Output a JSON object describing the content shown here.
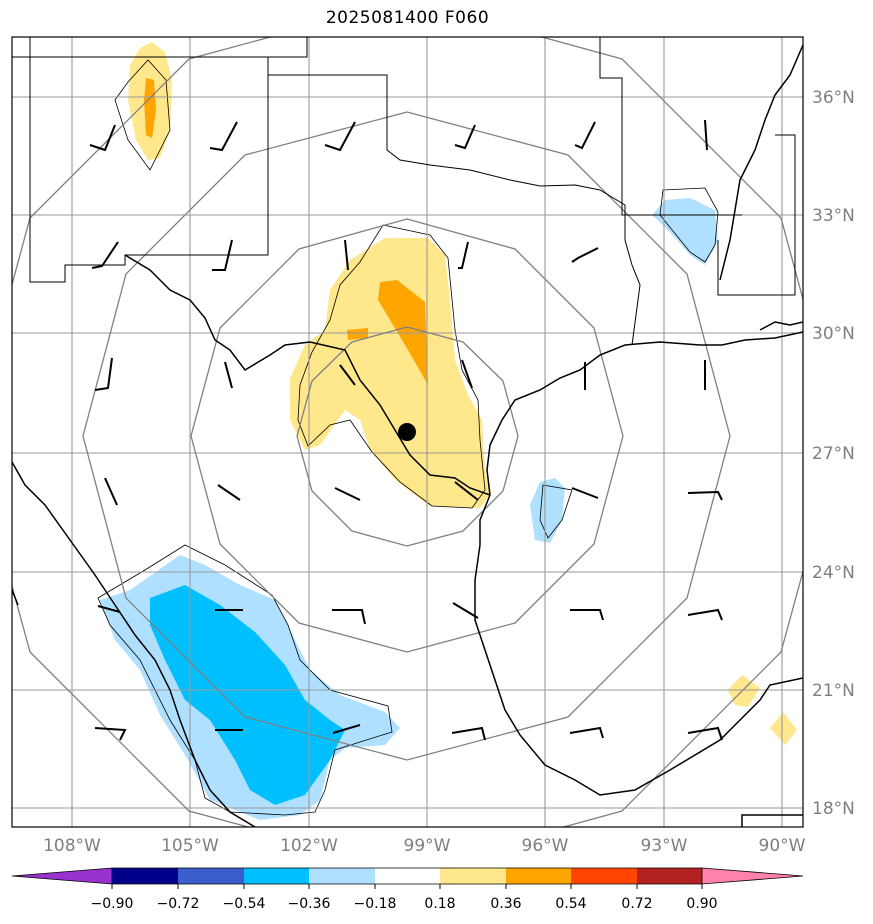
{
  "title": "2025081400 F060",
  "lat_labels": [
    "36°N",
    "33°N",
    "30°N",
    "27°N",
    "24°N",
    "21°N",
    "18°N"
  ],
  "lon_labels": [
    "108°W",
    "105°W",
    "102°W",
    "99°W",
    "96°W",
    "93°W",
    "90°W"
  ],
  "colorbar": {
    "tick_labels": [
      "−0.90",
      "−0.72",
      "−0.54",
      "−0.36",
      "−0.18",
      "0.18",
      "0.36",
      "0.54",
      "0.72",
      "0.90"
    ],
    "colors": [
      "#9932cc",
      "#00008b",
      "#3a5fcd",
      "#00bfff",
      "#b0e0ff",
      "#ffffff",
      "#ffe88c",
      "#ffa500",
      "#ff4500",
      "#b22222",
      "#ff82ab"
    ]
  },
  "center_marker": {
    "lat": 27.5,
    "lon": -99.5
  },
  "colors": {
    "grid": "#999999",
    "rings": "#808080",
    "coast": "#000000"
  }
}
